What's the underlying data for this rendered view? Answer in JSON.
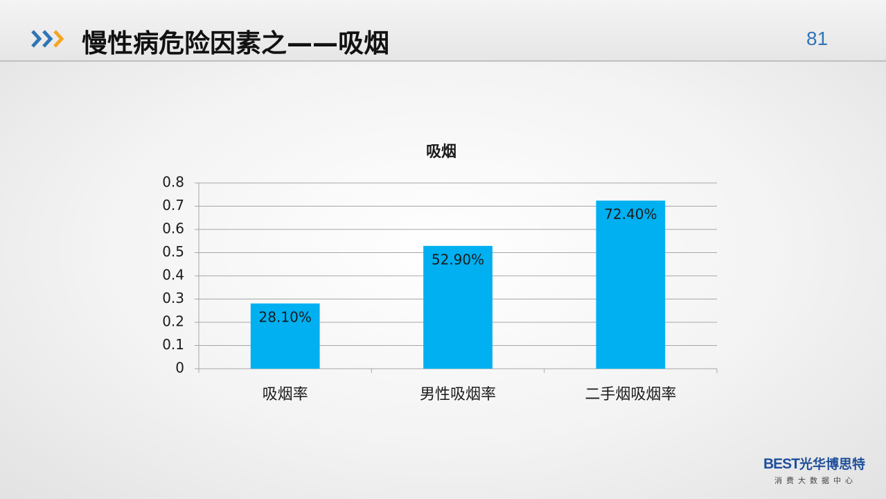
{
  "header": {
    "title": "慢性病危险因素之——吸烟",
    "page_number": 81
  },
  "logo": {
    "mark": "BEST",
    "name": "光华博思特",
    "subtitle": "消费大数据中心"
  },
  "chart_data": {
    "type": "bar",
    "title": "吸烟",
    "categories": [
      "吸烟率",
      "男性吸烟率",
      "二手烟吸烟率"
    ],
    "values": [
      0.281,
      0.529,
      0.724
    ],
    "value_labels": [
      "28.10%",
      "52.90%",
      "72.40%"
    ],
    "color": "#00b0f0",
    "ylim": [
      0,
      0.8
    ],
    "yticks": [
      0,
      0.1,
      0.2,
      0.3,
      0.4,
      0.5,
      0.6,
      0.7,
      0.8
    ],
    "grid": true
  }
}
